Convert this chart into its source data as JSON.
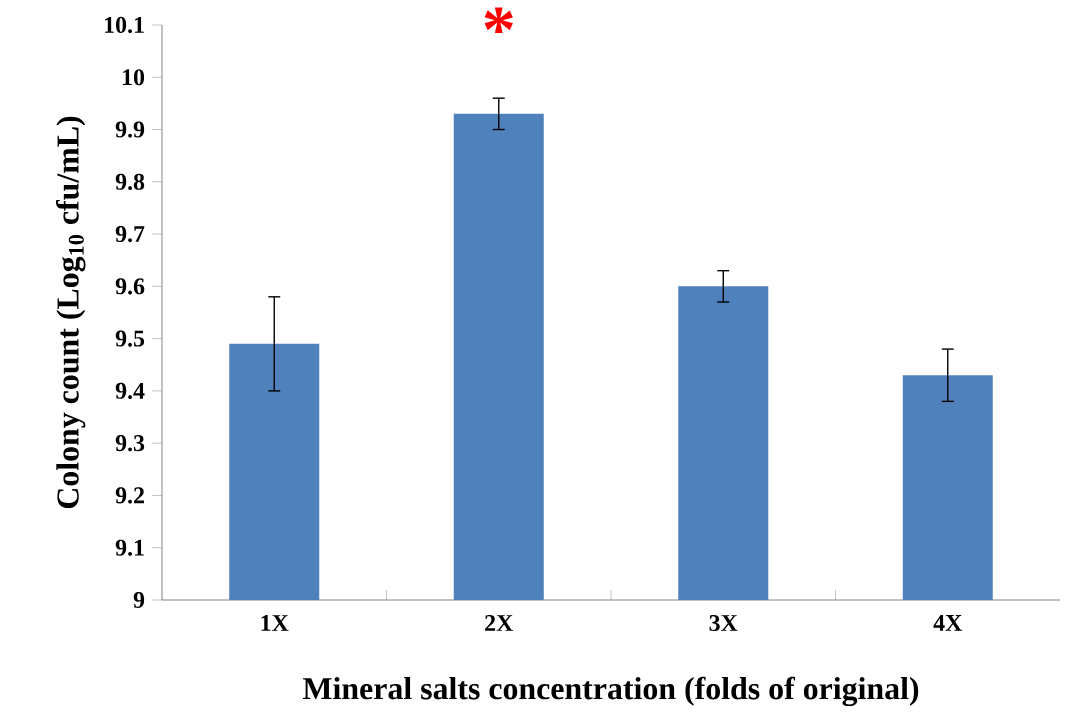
{
  "chart_data": {
    "type": "bar",
    "xlabel": "Mineral salts concentration (folds of original)",
    "ylabel": "Colony count (Log$_{10}$ cfu/mL)",
    "categories": [
      "1X",
      "2X",
      "3X",
      "4X"
    ],
    "values": [
      9.49,
      9.93,
      9.6,
      9.43
    ],
    "errors": [
      0.09,
      0.03,
      0.03,
      0.05
    ],
    "color": "#4f81bd",
    "ylim": [
      9,
      10.1
    ],
    "yticks": [
      9,
      9.1,
      9.2,
      9.3,
      9.4,
      9.5,
      9.6,
      9.7,
      9.8,
      9.9,
      10,
      10.1
    ],
    "annotations": [
      "*"
    ]
  }
}
